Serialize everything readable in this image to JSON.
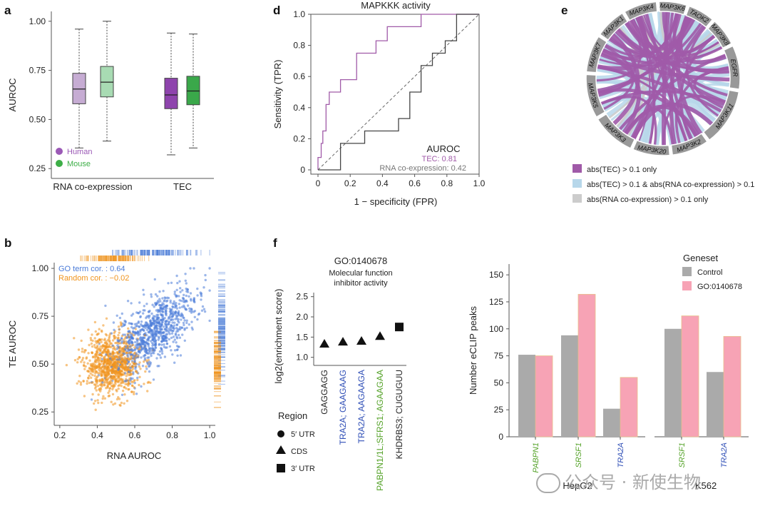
{
  "colors": {
    "human": "#9b59b6",
    "mouse": "#3dae47",
    "human_fill": "#c6acd3",
    "mouse_fill": "#a8dbb3",
    "tec_dark": "#8e44ad",
    "tec_light": "#3aa84a",
    "purple": "#a05aa8",
    "lightblue": "#b7d7ea",
    "grey": "#cccccc",
    "blue": "#4a7bd8",
    "orange": "#f0941d",
    "control": "#aaaaaa",
    "go": "#f7a3b5",
    "green_gene": "#56a32a",
    "blue_gene": "#3150b7"
  },
  "watermark": "公众号 · 新使生物",
  "panel_a": {
    "label": "a",
    "chart_data": {
      "type": "box",
      "ylabel": "AUROC",
      "ylim": [
        0.2,
        1.05
      ],
      "yticks": [
        "0.25",
        "0.50",
        "0.75",
        "1.00"
      ],
      "groups": [
        "RNA co-expression",
        "TEC"
      ],
      "legend": [
        "Human",
        "Mouse"
      ],
      "boxes": [
        {
          "group": "RNA co-expression",
          "species": "Human",
          "min": 0.355,
          "q1": 0.58,
          "median": 0.655,
          "q3": 0.735,
          "max": 0.96
        },
        {
          "group": "RNA co-expression",
          "species": "Mouse",
          "min": 0.39,
          "q1": 0.615,
          "median": 0.69,
          "q3": 0.77,
          "max": 1.0
        },
        {
          "group": "TEC",
          "species": "Human",
          "min": 0.32,
          "q1": 0.555,
          "median": 0.625,
          "q3": 0.71,
          "max": 0.94
        },
        {
          "group": "TEC",
          "species": "Mouse",
          "min": 0.355,
          "q1": 0.575,
          "median": 0.645,
          "q3": 0.72,
          "max": 0.935
        }
      ]
    }
  },
  "panel_d": {
    "label": "d",
    "chart_data": {
      "type": "line",
      "title": "MAPKKK activity",
      "xlabel": "1 − specificity (FPR)",
      "ylabel": "Sensitivity (TPR)",
      "xlim": [
        0,
        1
      ],
      "ylim": [
        0,
        1
      ],
      "xticks": [
        "0",
        "0.2",
        "0.4",
        "0.6",
        "0.8",
        "1.0"
      ],
      "yticks": [
        "0",
        "0.2",
        "0.4",
        "0.6",
        "0.8",
        "1.0"
      ],
      "legend_title": "AUROC",
      "series": [
        {
          "name": "TEC: 0.81",
          "points": [
            [
              0,
              0
            ],
            [
              0,
              0.08
            ],
            [
              0.02,
              0.08
            ],
            [
              0.02,
              0.17
            ],
            [
              0.03,
              0.17
            ],
            [
              0.03,
              0.25
            ],
            [
              0.05,
              0.25
            ],
            [
              0.05,
              0.42
            ],
            [
              0.07,
              0.42
            ],
            [
              0.07,
              0.5
            ],
            [
              0.14,
              0.5
            ],
            [
              0.14,
              0.58
            ],
            [
              0.24,
              0.58
            ],
            [
              0.24,
              0.75
            ],
            [
              0.36,
              0.75
            ],
            [
              0.36,
              0.83
            ],
            [
              0.43,
              0.83
            ],
            [
              0.43,
              0.92
            ],
            [
              0.64,
              0.92
            ],
            [
              0.64,
              1.0
            ],
            [
              1.0,
              1.0
            ]
          ]
        },
        {
          "name": "RNA co-expression: 0.42",
          "points": [
            [
              0,
              0
            ],
            [
              0.14,
              0
            ],
            [
              0.14,
              0.08
            ],
            [
              0.14,
              0.17
            ],
            [
              0.29,
              0.17
            ],
            [
              0.29,
              0.25
            ],
            [
              0.5,
              0.25
            ],
            [
              0.5,
              0.33
            ],
            [
              0.57,
              0.33
            ],
            [
              0.57,
              0.42
            ],
            [
              0.57,
              0.5
            ],
            [
              0.64,
              0.5
            ],
            [
              0.64,
              0.67
            ],
            [
              0.71,
              0.67
            ],
            [
              0.71,
              0.75
            ],
            [
              0.79,
              0.75
            ],
            [
              0.79,
              0.83
            ],
            [
              0.86,
              0.83
            ],
            [
              0.86,
              1.0
            ],
            [
              1.0,
              1.0
            ]
          ]
        }
      ]
    }
  },
  "panel_e": {
    "label": "e",
    "segments": [
      "MAP3K4",
      "MAP3K6",
      "TAOK2",
      "MAP3K8",
      "EGFR",
      "MAP3K11",
      "MAP3K2",
      "MAP3K20",
      "MAP3K3",
      "MAP3K5",
      "MAP3K7",
      "MAP3K1"
    ],
    "legend": [
      "abs(TEC) > 0.1 only",
      "abs(TEC) > 0.1 & abs(RNA co-expression) > 0.1",
      "abs(RNA co-expression) > 0.1 only"
    ]
  },
  "panel_b": {
    "label": "b",
    "chart_data": {
      "type": "scatter",
      "xlabel": "RNA AUROC",
      "ylabel": "TE AUROC",
      "xlim": [
        0.17,
        1.03
      ],
      "ylim": [
        0.18,
        1.03
      ],
      "xticks": [
        "0.2",
        "0.4",
        "0.6",
        "0.8",
        "1.0"
      ],
      "yticks": [
        "0.25",
        "0.50",
        "0.75",
        "1.00"
      ],
      "legend": [
        "GO term cor. : 0.64",
        "Random cor. : −0.02"
      ],
      "series": [
        {
          "name": "GO term",
          "center": [
            0.7,
            0.67
          ],
          "spread": [
            0.11,
            0.11
          ],
          "cor": 0.64
        },
        {
          "name": "Random",
          "center": [
            0.48,
            0.5
          ],
          "spread": [
            0.075,
            0.08
          ],
          "cor": -0.02
        }
      ]
    }
  },
  "panel_f1": {
    "label": "f",
    "chart_data": {
      "type": "scatter",
      "title": "GO:0140678",
      "subtitle1": "Molecular function",
      "subtitle2": "inhibitor activity",
      "ylabel": "log2(enrichment score)",
      "ylim": [
        0.8,
        2.6
      ],
      "yticks": [
        "1.0",
        "1.5",
        "2.0",
        "2.5"
      ],
      "categories": [
        "GAGGAGG",
        "TRA2A; GAAGAAG",
        "TRA2A; AAGAAGA",
        "PABPN1/1L;SFRS1; AGAAGAA",
        "KHDRBS3; CUGUGUU"
      ],
      "values": [
        1.33,
        1.38,
        1.4,
        1.52,
        1.75
      ],
      "regions": [
        "CDS",
        "CDS",
        "CDS",
        "CDS",
        "3′ UTR"
      ],
      "legend_title": "Region",
      "legend": [
        "5′ UTR",
        "CDS",
        "3′ UTR"
      ]
    }
  },
  "panel_f2": {
    "chart_data": {
      "type": "bar",
      "ylabel": "Number eCLIP peaks",
      "ylim": [
        0,
        160
      ],
      "yticks": [
        "0",
        "25",
        "50",
        "75",
        "100",
        "125",
        "150"
      ],
      "legend_title": "Geneset",
      "legend": [
        "Control",
        "GO:0140678"
      ],
      "cells": [
        "HepG2",
        "K562"
      ],
      "categories": [
        "PABPN1",
        "SRSF1",
        "TRA2A",
        "SRSF1",
        "TRA2A"
      ],
      "series": [
        {
          "name": "Control",
          "values": [
            76,
            94,
            26,
            100,
            60
          ]
        },
        {
          "name": "GO:0140678",
          "values": [
            75,
            132,
            55,
            112,
            93
          ]
        }
      ]
    }
  }
}
